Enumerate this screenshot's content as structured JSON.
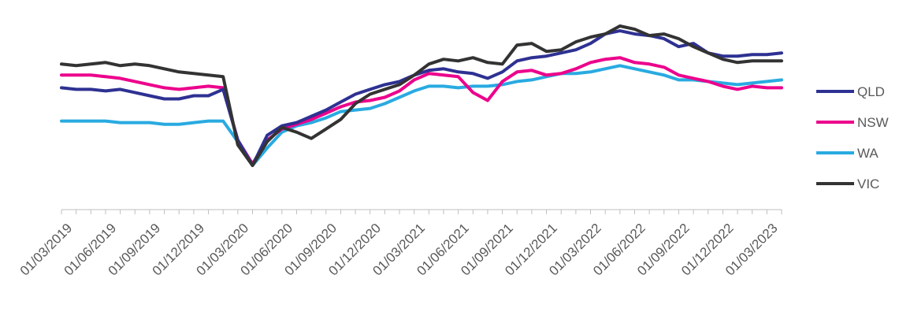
{
  "chart_data": {
    "type": "line",
    "title": "",
    "xlabel": "",
    "ylabel": "",
    "ylim": [
      0,
      100
    ],
    "y_axis_labels_shown": false,
    "grid": false,
    "legend_position": "right",
    "x": [
      "01/03/2019",
      "01/04/2019",
      "01/05/2019",
      "01/06/2019",
      "01/07/2019",
      "01/08/2019",
      "01/09/2019",
      "01/10/2019",
      "01/11/2019",
      "01/12/2019",
      "01/01/2020",
      "01/02/2020",
      "01/03/2020",
      "01/04/2020",
      "01/05/2020",
      "01/06/2020",
      "01/07/2020",
      "01/08/2020",
      "01/09/2020",
      "01/10/2020",
      "01/11/2020",
      "01/12/2020",
      "01/01/2021",
      "01/02/2021",
      "01/03/2021",
      "01/04/2021",
      "01/05/2021",
      "01/06/2021",
      "01/07/2021",
      "01/08/2021",
      "01/09/2021",
      "01/10/2021",
      "01/11/2021",
      "01/12/2021",
      "01/01/2022",
      "01/02/2022",
      "01/03/2022",
      "01/04/2022",
      "01/05/2022",
      "01/06/2022",
      "01/07/2022",
      "01/08/2022",
      "01/09/2022",
      "01/10/2022",
      "01/11/2022",
      "01/12/2022",
      "01/01/2023",
      "01/02/2023",
      "01/03/2023",
      "01/04/2023"
    ],
    "tick_labels": [
      "01/03/2019",
      "01/06/2019",
      "01/09/2019",
      "01/12/2019",
      "01/03/2020",
      "01/06/2020",
      "01/09/2020",
      "01/12/2020",
      "01/03/2021",
      "01/06/2021",
      "01/09/2021",
      "01/12/2021",
      "01/03/2022",
      "01/06/2022",
      "01/09/2022",
      "01/12/2022",
      "01/03/2023"
    ],
    "series": [
      {
        "name": "QLD",
        "color": "#2e3192",
        "values": [
          58,
          57,
          57,
          56,
          57,
          55,
          53,
          51,
          51,
          53,
          53,
          57,
          25,
          9,
          28,
          34,
          36,
          40,
          44,
          49,
          54,
          57,
          60,
          62,
          66,
          69,
          70,
          68,
          67,
          64,
          68,
          75,
          77,
          78,
          80,
          82,
          86,
          92,
          94,
          92,
          91,
          89,
          84,
          86,
          80,
          78,
          78,
          79,
          79,
          80
        ]
      },
      {
        "name": "NSW",
        "color": "#ec008c",
        "values": [
          66,
          66,
          66,
          65,
          64,
          62,
          60,
          58,
          57,
          58,
          59,
          58,
          25,
          10,
          25,
          32,
          35,
          38,
          42,
          46,
          49,
          50,
          52,
          56,
          63,
          67,
          66,
          65,
          55,
          50,
          62,
          68,
          69,
          66,
          67,
          70,
          74,
          76,
          77,
          74,
          73,
          71,
          66,
          64,
          62,
          59,
          57,
          59,
          58,
          58
        ]
      },
      {
        "name": "WA",
        "color": "#29aae1",
        "values": [
          37,
          37,
          37,
          37,
          36,
          36,
          36,
          35,
          35,
          36,
          37,
          37,
          24,
          9,
          20,
          30,
          34,
          36,
          39,
          43,
          44,
          45,
          48,
          52,
          56,
          59,
          59,
          58,
          59,
          59,
          60,
          62,
          63,
          65,
          67,
          67,
          68,
          70,
          72,
          70,
          68,
          66,
          63,
          63,
          62,
          61,
          60,
          61,
          62,
          63
        ]
      },
      {
        "name": "VIC",
        "color": "#333333",
        "values": [
          73,
          72,
          73,
          74,
          72,
          73,
          72,
          70,
          68,
          67,
          66,
          65,
          22,
          9,
          24,
          33,
          30,
          26,
          32,
          38,
          48,
          54,
          57,
          60,
          66,
          73,
          76,
          75,
          77,
          74,
          73,
          85,
          86,
          81,
          82,
          87,
          90,
          92,
          97,
          95,
          91,
          92,
          89,
          84,
          80,
          76,
          74,
          75,
          75,
          75
        ]
      }
    ]
  }
}
